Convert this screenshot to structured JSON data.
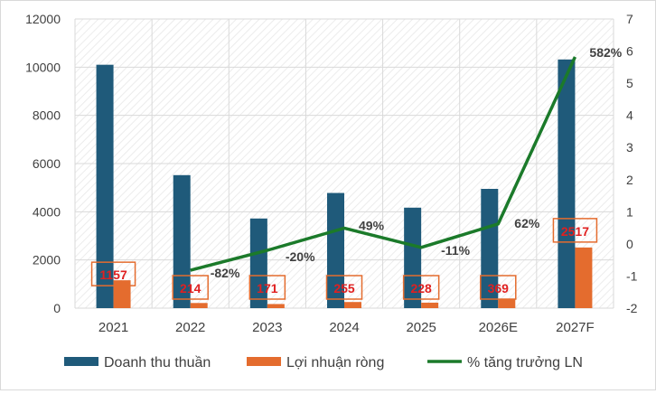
{
  "chart_data": {
    "type": "bar",
    "categories": [
      "2021",
      "2022",
      "2023",
      "2024",
      "2025",
      "2026E",
      "2027F"
    ],
    "series": [
      {
        "name": "Doanh thu thuần",
        "kind": "bar",
        "axis": "left",
        "color": "#1f5a7a",
        "values": [
          10100,
          5520,
          3720,
          4780,
          4170,
          4950,
          10320
        ]
      },
      {
        "name": "Lợi nhuận ròng",
        "kind": "bar",
        "axis": "left",
        "color": "#e46c2e",
        "values": [
          1157,
          214,
          171,
          255,
          228,
          369,
          2517
        ],
        "labels": [
          "1157",
          "214",
          "171",
          "255",
          "228",
          "369",
          "2517"
        ]
      },
      {
        "name": "% tăng trưởng LN",
        "kind": "line",
        "axis": "right",
        "color": "#1b7a2a",
        "values": [
          null,
          -0.82,
          -0.2,
          0.49,
          -0.11,
          0.62,
          5.82
        ],
        "labels": [
          "",
          "-82%",
          "-20%",
          "49%",
          "-11%",
          "62%",
          "582%"
        ]
      }
    ],
    "y_left": {
      "min": 0,
      "max": 12000,
      "ticks": [
        "0",
        "2000",
        "4000",
        "6000",
        "8000",
        "10000",
        "12000"
      ]
    },
    "y_right": {
      "min": -2,
      "max": 7,
      "ticks": [
        "-2",
        "-1",
        "0",
        "1",
        "2",
        "3",
        "4",
        "5",
        "6",
        "7"
      ]
    },
    "grid": true,
    "legend_position": "bottom",
    "label_color": "#e02020",
    "label_box_color": "#e46c2e"
  }
}
